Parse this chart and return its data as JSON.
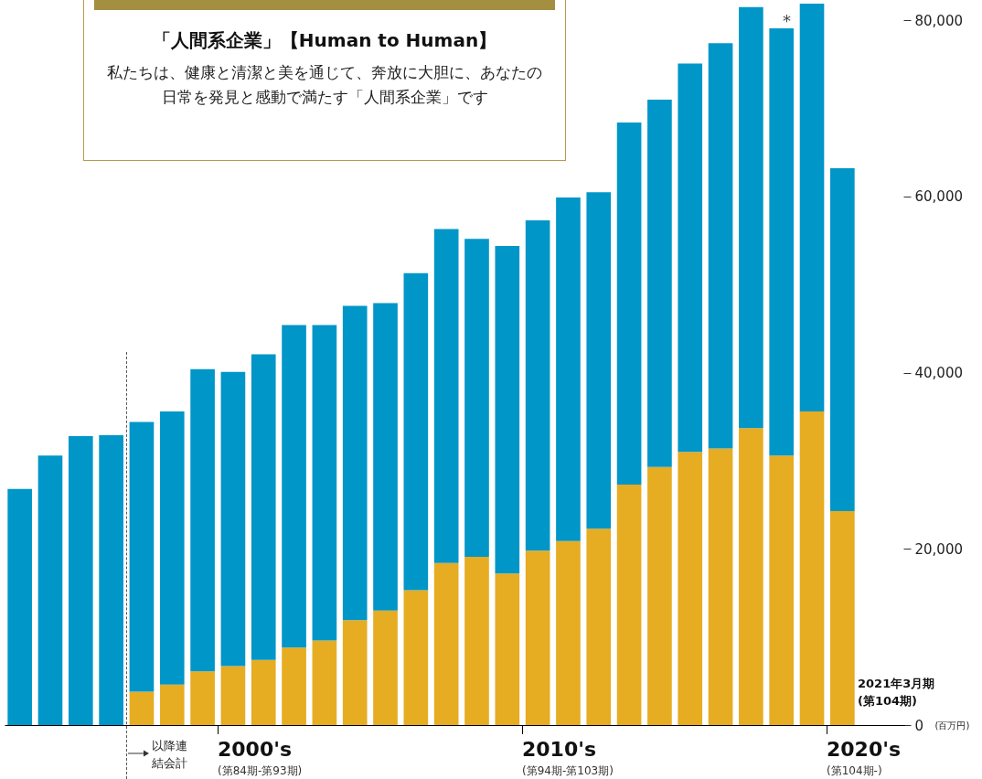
{
  "chart_data": {
    "type": "bar",
    "title": "「人間系企業」【Human to Human】",
    "subtitle": "私たちは、健康と清潔と美を通じて、奔放に大胆に、あなたの日常を発見と感動で満たす「人間系企業」です",
    "ylabel": "(百万円)",
    "stacked": true,
    "grid": false,
    "categories": [
      null,
      null,
      null,
      null,
      null,
      null,
      null,
      null,
      null,
      null,
      null,
      null,
      null,
      null,
      null,
      null,
      null,
      null,
      null,
      null,
      null,
      null,
      null,
      null,
      null,
      null,
      null,
      null
    ],
    "ylim": [
      0,
      82000
    ],
    "yticks": [
      {
        "value": 0,
        "label": "0"
      },
      {
        "value": 20000,
        "label": "20,000"
      },
      {
        "value": 40000,
        "label": "40,000"
      },
      {
        "value": 60000,
        "label": "60,000"
      },
      {
        "value": 80000,
        "label": "80,000"
      }
    ],
    "series": [
      {
        "color": "#e6ac22",
        "values": [
          null,
          null,
          null,
          null,
          3800,
          4600,
          6100,
          6700,
          7400,
          8800,
          9600,
          11900,
          13000,
          15300,
          18400,
          19100,
          17200,
          19800,
          20900,
          22300,
          27300,
          29300,
          31000,
          31400,
          33700,
          30600,
          35600,
          24300
        ]
      },
      {
        "color": "#0096c8",
        "values": [
          26800,
          30600,
          32800,
          32900,
          30600,
          31000,
          34300,
          33400,
          34700,
          36600,
          35800,
          35700,
          34900,
          36000,
          37900,
          36100,
          37200,
          37500,
          39000,
          38200,
          41100,
          41700,
          44100,
          46000,
          47800,
          48500,
          46300,
          38900
        ]
      }
    ],
    "annotations": [
      "*",
      "2021年3月期(第104期)",
      "以降連結会計",
      "2000's",
      "(第84期-第93期)",
      "2010's",
      "(第94期-第103期)",
      "2020's",
      "(第104期-)"
    ]
  }
}
